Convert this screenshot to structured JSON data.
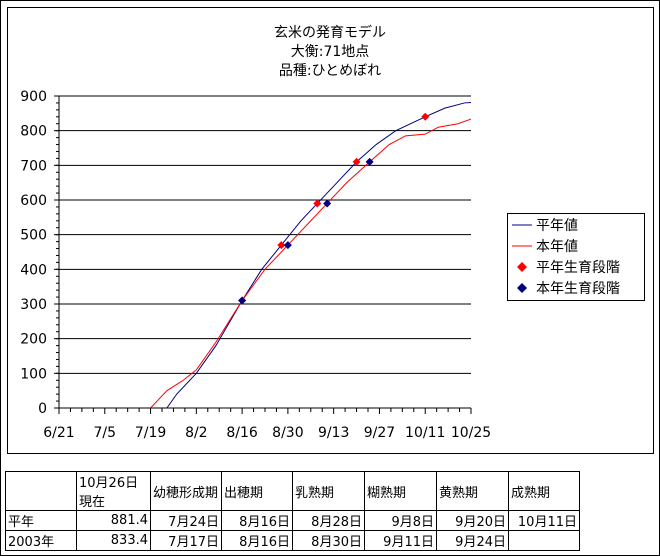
{
  "chart_data": {
    "type": "line",
    "title": [
      "玄米の発育モデル",
      "大衡:71地点",
      "品種:ひとめぼれ"
    ],
    "ylim": [
      0,
      900
    ],
    "yticks": [
      0,
      100,
      200,
      300,
      400,
      500,
      600,
      700,
      800,
      900
    ],
    "xlabels": [
      "6/21",
      "7/5",
      "7/19",
      "8/2",
      "8/16",
      "8/30",
      "9/13",
      "9/27",
      "10/11",
      "10/25"
    ],
    "xrange_days": [
      0,
      126
    ],
    "series": [
      {
        "name": "平年値",
        "color": "#000080",
        "points": [
          [
            33,
            0
          ],
          [
            36,
            40
          ],
          [
            42,
            100
          ],
          [
            48,
            180
          ],
          [
            56,
            310
          ],
          [
            62,
            400
          ],
          [
            68,
            470
          ],
          [
            74,
            540
          ],
          [
            79,
            590
          ],
          [
            85,
            650
          ],
          [
            91,
            710
          ],
          [
            97,
            760
          ],
          [
            103,
            800
          ],
          [
            112,
            840
          ],
          [
            118,
            865
          ],
          [
            124,
            880
          ],
          [
            126,
            881.4
          ]
        ]
      },
      {
        "name": "本年値",
        "color": "#ff0000",
        "points": [
          [
            28,
            0
          ],
          [
            30,
            20
          ],
          [
            33,
            50
          ],
          [
            38,
            80
          ],
          [
            42,
            110
          ],
          [
            48,
            190
          ],
          [
            56,
            310
          ],
          [
            63,
            400
          ],
          [
            70,
            470
          ],
          [
            76,
            530
          ],
          [
            82,
            590
          ],
          [
            88,
            650
          ],
          [
            95,
            710
          ],
          [
            101,
            760
          ],
          [
            106,
            785
          ],
          [
            112,
            790
          ],
          [
            116,
            810
          ],
          [
            122,
            820
          ],
          [
            126,
            833.4
          ]
        ]
      }
    ],
    "markers": [
      {
        "name": "平年生育段階",
        "color": "#ff0000",
        "points": [
          [
            56,
            310
          ],
          [
            68,
            470
          ],
          [
            79,
            590
          ],
          [
            91,
            710
          ],
          [
            112,
            840
          ]
        ]
      },
      {
        "name": "本年生育段階",
        "color": "#000080",
        "points": [
          [
            56,
            310
          ],
          [
            70,
            470
          ],
          [
            82,
            590
          ],
          [
            95,
            710
          ]
        ]
      }
    ]
  },
  "table": {
    "headers": [
      "",
      "10月26日\n現在",
      "幼穂形成期",
      "出穂期",
      "乳熟期",
      "糊熟期",
      "黄熟期",
      "成熟期"
    ],
    "rows": [
      [
        "平年",
        "881.4",
        "7月24日",
        "8月16日",
        "8月28日",
        "9月8日",
        "9月20日",
        "10月11日"
      ],
      [
        "2003年",
        "833.4",
        "7月17日",
        "8月16日",
        "8月30日",
        "9月11日",
        "9月24日",
        ""
      ]
    ]
  }
}
